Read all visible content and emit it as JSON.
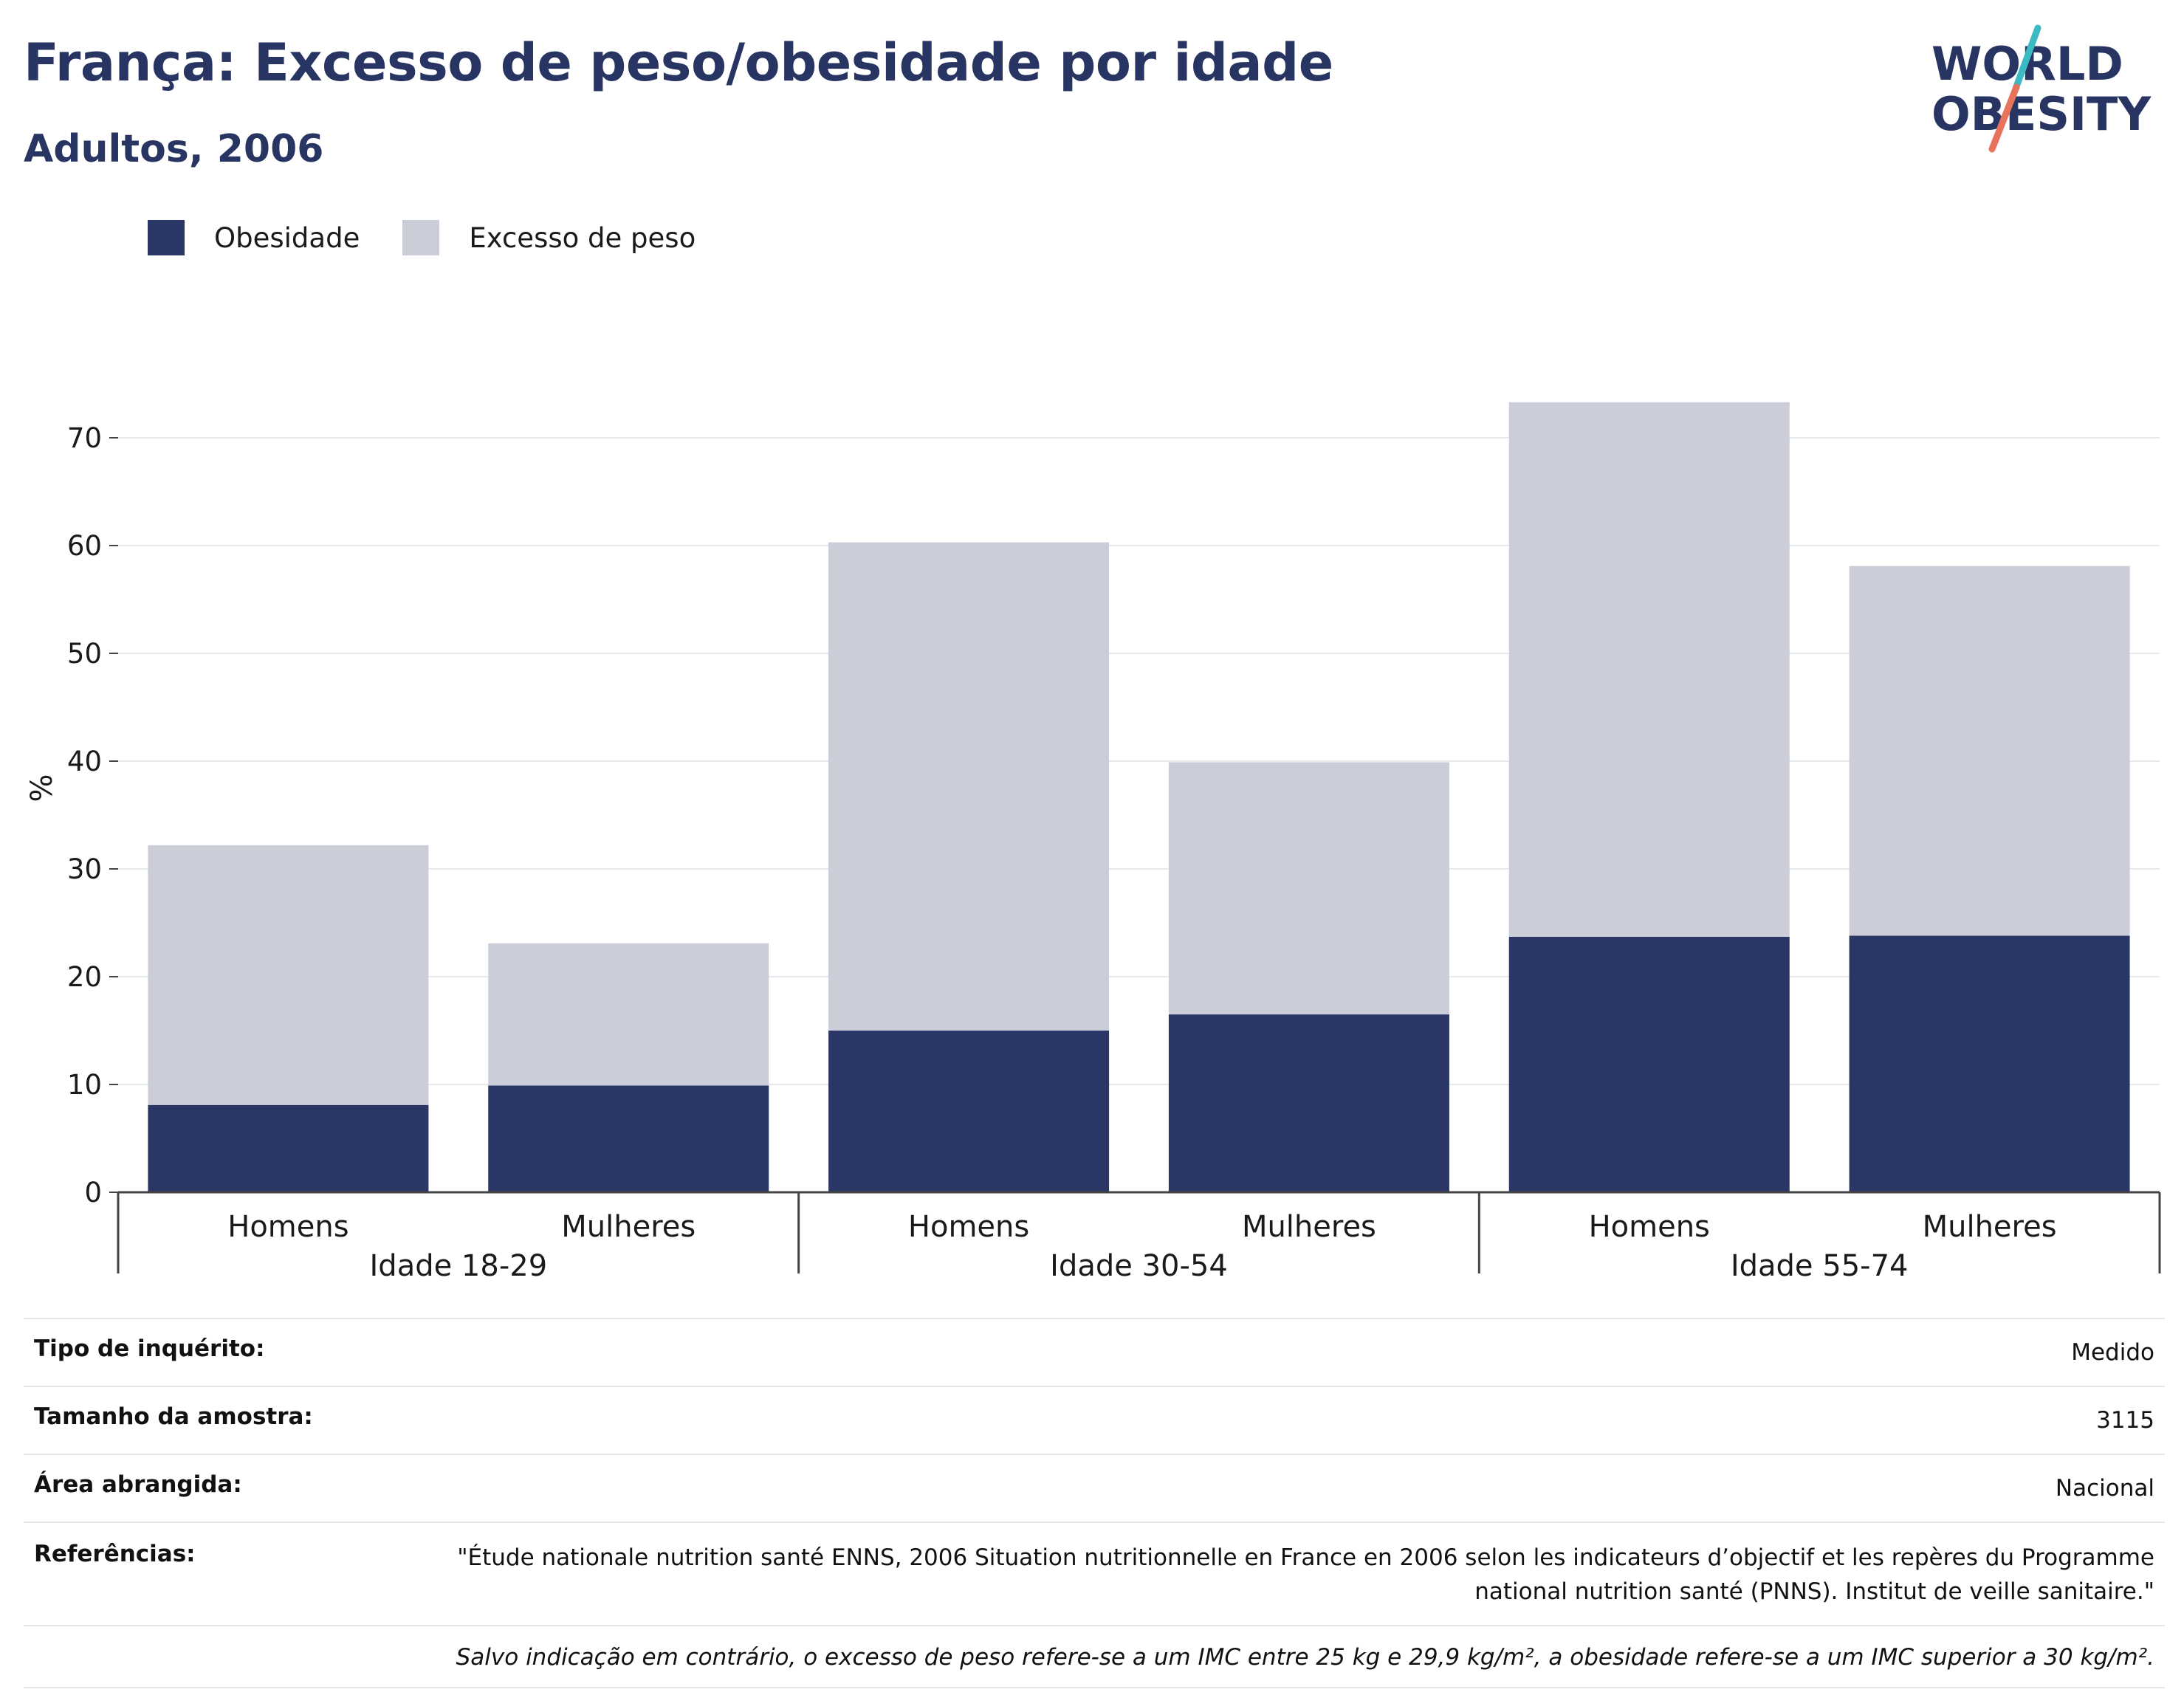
{
  "header": {
    "title": "França: Excesso de peso/obesidade por idade",
    "subtitle": "Adultos, 2006"
  },
  "logo": {
    "line1": "WORLD",
    "line2": "OBESITY",
    "colors": {
      "text": "#283562",
      "slash_top": "#3bbac2",
      "slash_bottom": "#e8735c"
    }
  },
  "legend": [
    {
      "label": "Obesidade",
      "color": "#2a3665"
    },
    {
      "label": "Excesso de peso",
      "color": "#cbcdd9"
    }
  ],
  "chart_data": {
    "type": "bar",
    "stacked": true,
    "ylabel": "%",
    "ylim": [
      0,
      75
    ],
    "yticks": [
      0,
      10,
      20,
      30,
      40,
      50,
      60,
      70
    ],
    "grid": true,
    "legend_position": "top-left",
    "groups": [
      "Idade 18-29",
      "Idade 30-54",
      "Idade 55-74"
    ],
    "categories": [
      "Homens",
      "Mulheres",
      "Homens",
      "Mulheres",
      "Homens",
      "Mulheres"
    ],
    "series": [
      {
        "name": "Obesidade",
        "color": "#2a3665",
        "values": [
          8.1,
          9.9,
          15.0,
          16.5,
          23.7,
          23.8
        ]
      },
      {
        "name": "Excesso de peso",
        "color": "#cbcdd9",
        "values": [
          24.1,
          13.2,
          45.3,
          23.4,
          49.6,
          34.3
        ]
      }
    ]
  },
  "info": {
    "rows": [
      {
        "label": "Tipo de inquérito:",
        "value": "Medido"
      },
      {
        "label": "Tamanho da amostra:",
        "value": "3115"
      },
      {
        "label": "Área abrangida:",
        "value": "Nacional"
      },
      {
        "label": "Referências:",
        "value": "\"Étude nationale nutrition santé ENNS, 2006 Situation nutritionnelle en France en 2006 selon les indicateurs d’objectif et les repères du Programme national nutrition santé (PNNS). Institut de veille sanitaire.\""
      }
    ],
    "note": "Salvo indicação em contrário, o excesso de peso refere-se a um IMC entre 25 kg e 29,9 kg/m², a obesidade refere-se a um IMC superior a 30 kg/m²."
  }
}
